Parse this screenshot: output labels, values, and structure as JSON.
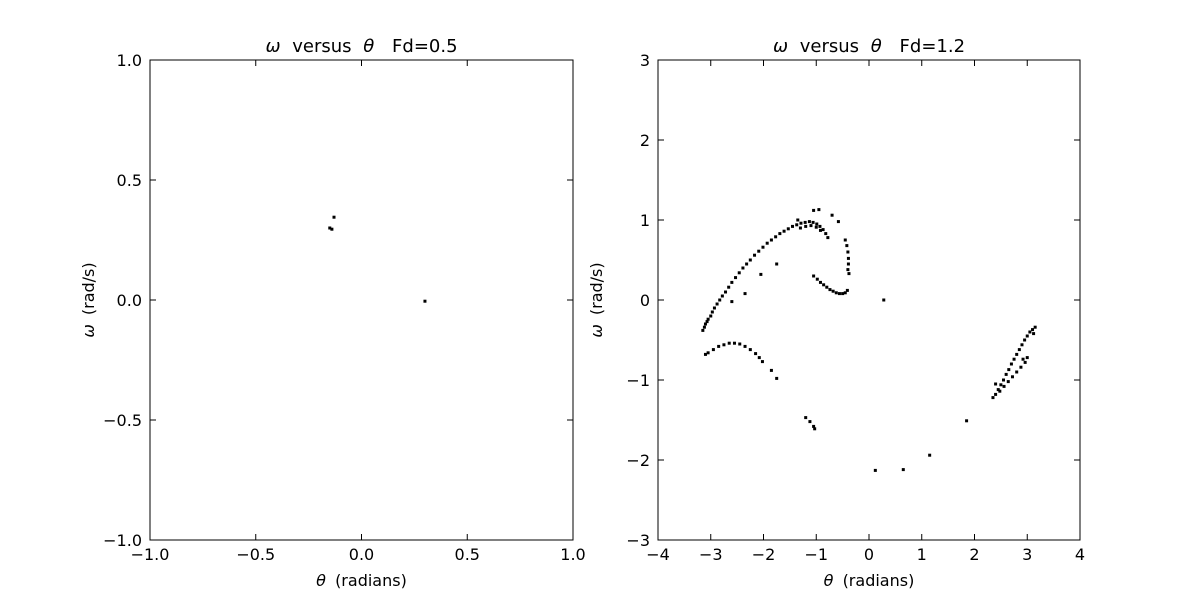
{
  "chart_data": [
    {
      "type": "scatter",
      "title_symbols": {
        "y": "ω",
        "x": "θ"
      },
      "title_text": "versus",
      "title_param": "Fd=0.5",
      "xlabel_symbol": "θ",
      "xlabel_unit": "(radians)",
      "ylabel_symbol": "ω",
      "ylabel_unit": "(rad/s)",
      "xlim": [
        -1.0,
        1.0
      ],
      "ylim": [
        -1.0,
        1.0
      ],
      "xticks": [
        -1.0,
        -0.5,
        0.0,
        0.5,
        1.0
      ],
      "yticks": [
        -1.0,
        -0.5,
        0.0,
        0.5,
        1.0
      ],
      "xtick_labels": [
        "−1.0",
        "−0.5",
        "0.0",
        "0.5",
        "1.0"
      ],
      "ytick_labels": [
        "−1.0",
        "−0.5",
        "0.0",
        "0.5",
        "1.0"
      ],
      "grid": false,
      "marker_color": "#000000",
      "points": [
        [
          -0.15,
          0.3
        ],
        [
          -0.14,
          0.295
        ],
        [
          -0.13,
          0.345
        ],
        [
          0.3,
          -0.005
        ]
      ]
    },
    {
      "type": "scatter",
      "title_symbols": {
        "y": "ω",
        "x": "θ"
      },
      "title_text": "versus",
      "title_param": "Fd=1.2",
      "xlabel_symbol": "θ",
      "xlabel_unit": "(radians)",
      "ylabel_symbol": "ω",
      "ylabel_unit": "(rad/s)",
      "xlim": [
        -4,
        4
      ],
      "ylim": [
        -3,
        3
      ],
      "xticks": [
        -4,
        -3,
        -2,
        -1,
        0,
        1,
        2,
        3,
        4
      ],
      "yticks": [
        -3,
        -2,
        -1,
        0,
        1,
        2,
        3
      ],
      "xtick_labels": [
        "−4",
        "−3",
        "−2",
        "−1",
        "0",
        "1",
        "2",
        "3",
        "4"
      ],
      "ytick_labels": [
        "−3",
        "−2",
        "−1",
        "0",
        "1",
        "2",
        "3"
      ],
      "grid": false,
      "marker_color": "#000000",
      "points": [
        [
          -3.15,
          -0.38
        ],
        [
          -3.12,
          -0.34
        ],
        [
          -3.1,
          -0.3
        ],
        [
          -3.07,
          -0.27
        ],
        [
          -3.05,
          -0.24
        ],
        [
          -3.0,
          -0.2
        ],
        [
          -2.97,
          -0.15
        ],
        [
          -2.93,
          -0.1
        ],
        [
          -2.88,
          -0.05
        ],
        [
          -2.83,
          0.0
        ],
        [
          -2.78,
          0.05
        ],
        [
          -2.72,
          0.1
        ],
        [
          -2.66,
          0.16
        ],
        [
          -2.6,
          0.22
        ],
        [
          -2.53,
          0.28
        ],
        [
          -2.46,
          0.34
        ],
        [
          -2.39,
          0.4
        ],
        [
          -2.32,
          0.45
        ],
        [
          -2.25,
          0.5
        ],
        [
          -2.17,
          0.56
        ],
        [
          -2.09,
          0.61
        ],
        [
          -2.01,
          0.66
        ],
        [
          -1.93,
          0.71
        ],
        [
          -1.85,
          0.75
        ],
        [
          -1.77,
          0.79
        ],
        [
          -1.69,
          0.83
        ],
        [
          -1.61,
          0.86
        ],
        [
          -1.53,
          0.89
        ],
        [
          -1.45,
          0.92
        ],
        [
          -1.37,
          0.94
        ],
        [
          -1.29,
          0.96
        ],
        [
          -1.21,
          0.97
        ],
        [
          -1.13,
          0.98
        ],
        [
          -1.06,
          0.97
        ],
        [
          -0.99,
          0.95
        ],
        [
          -0.93,
          0.92
        ],
        [
          -0.87,
          0.88
        ],
        [
          -0.82,
          0.83
        ],
        [
          -0.78,
          0.78
        ],
        [
          -1.3,
          0.9
        ],
        [
          -1.2,
          0.92
        ],
        [
          -1.1,
          0.93
        ],
        [
          -1.0,
          0.91
        ],
        [
          -0.92,
          0.87
        ],
        [
          -1.05,
          1.12
        ],
        [
          -0.95,
          1.13
        ],
        [
          -0.7,
          1.06
        ],
        [
          -0.58,
          0.98
        ],
        [
          -1.35,
          1.0
        ],
        [
          -0.45,
          0.75
        ],
        [
          -0.42,
          0.68
        ],
        [
          -0.4,
          0.6
        ],
        [
          -0.39,
          0.52
        ],
        [
          -0.39,
          0.45
        ],
        [
          -0.4,
          0.38
        ],
        [
          -0.38,
          0.33
        ],
        [
          -1.05,
          0.3
        ],
        [
          -0.98,
          0.26
        ],
        [
          -0.92,
          0.22
        ],
        [
          -0.86,
          0.19
        ],
        [
          -0.8,
          0.16
        ],
        [
          -0.74,
          0.13
        ],
        [
          -0.68,
          0.11
        ],
        [
          -0.62,
          0.09
        ],
        [
          -0.56,
          0.08
        ],
        [
          -0.5,
          0.08
        ],
        [
          -0.45,
          0.09
        ],
        [
          -0.41,
          0.12
        ],
        [
          -1.75,
          0.45
        ],
        [
          -2.05,
          0.32
        ],
        [
          -2.35,
          0.08
        ],
        [
          -2.6,
          -0.02
        ],
        [
          0.28,
          0.0
        ],
        [
          -3.1,
          -0.68
        ],
        [
          -3.05,
          -0.66
        ],
        [
          -2.95,
          -0.62
        ],
        [
          -2.85,
          -0.58
        ],
        [
          -2.75,
          -0.56
        ],
        [
          -2.65,
          -0.54
        ],
        [
          -2.55,
          -0.54
        ],
        [
          -2.45,
          -0.55
        ],
        [
          -2.35,
          -0.58
        ],
        [
          -2.25,
          -0.62
        ],
        [
          -2.15,
          -0.67
        ],
        [
          -2.08,
          -0.72
        ],
        [
          -2.02,
          -0.77
        ],
        [
          -1.85,
          -0.88
        ],
        [
          -1.75,
          -0.98
        ],
        [
          -1.2,
          -1.47
        ],
        [
          -1.12,
          -1.52
        ],
        [
          -1.05,
          -1.58
        ],
        [
          -1.03,
          -1.61
        ],
        [
          0.12,
          -2.13
        ],
        [
          0.65,
          -2.12
        ],
        [
          1.15,
          -1.94
        ],
        [
          1.85,
          -1.51
        ],
        [
          2.35,
          -1.22
        ],
        [
          2.4,
          -1.18
        ],
        [
          2.45,
          -1.12
        ],
        [
          2.5,
          -1.06
        ],
        [
          2.55,
          -1.0
        ],
        [
          2.6,
          -0.93
        ],
        [
          2.65,
          -0.87
        ],
        [
          2.7,
          -0.8
        ],
        [
          2.75,
          -0.74
        ],
        [
          2.8,
          -0.68
        ],
        [
          2.85,
          -0.62
        ],
        [
          2.9,
          -0.56
        ],
        [
          2.95,
          -0.5
        ],
        [
          3.0,
          -0.45
        ],
        [
          3.05,
          -0.4
        ],
        [
          3.1,
          -0.37
        ],
        [
          3.12,
          -0.42
        ],
        [
          3.15,
          -0.34
        ],
        [
          2.4,
          -1.05
        ],
        [
          2.48,
          -1.14
        ],
        [
          2.56,
          -1.08
        ],
        [
          2.64,
          -1.02
        ],
        [
          2.72,
          -0.96
        ],
        [
          2.8,
          -0.9
        ],
        [
          2.88,
          -0.84
        ],
        [
          2.96,
          -0.78
        ],
        [
          3.0,
          -0.72
        ],
        [
          2.92,
          -0.74
        ]
      ]
    }
  ]
}
